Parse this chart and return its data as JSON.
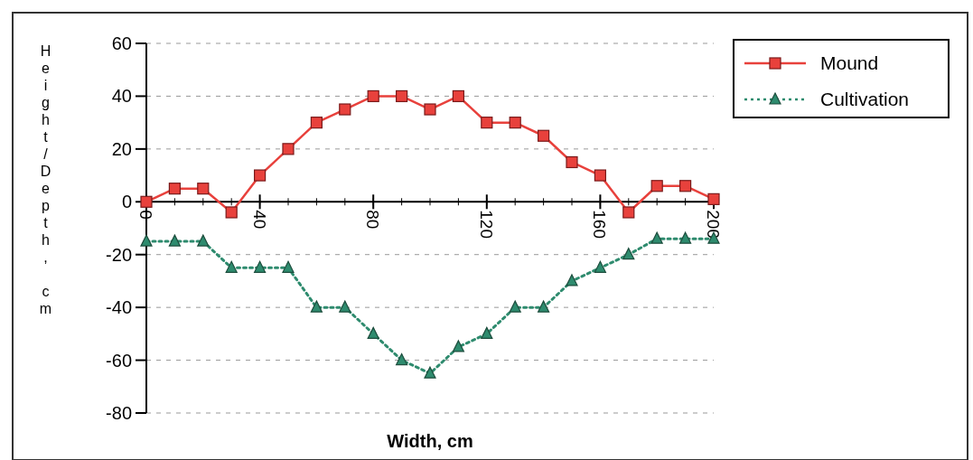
{
  "chart_data": {
    "type": "line",
    "xlabel": "Width, cm",
    "ylabel": "Height/Depth, cm",
    "x": [
      0,
      10,
      20,
      30,
      40,
      50,
      60,
      70,
      80,
      90,
      100,
      110,
      120,
      130,
      140,
      150,
      160,
      170,
      180,
      190,
      200
    ],
    "series": [
      {
        "name": "Mound",
        "color": "#e8413c",
        "marker": "square",
        "line_style": "solid",
        "values": [
          0,
          5,
          5,
          -4,
          10,
          20,
          30,
          35,
          40,
          40,
          35,
          40,
          30,
          30,
          25,
          15,
          10,
          -4,
          6,
          6,
          1
        ]
      },
      {
        "name": "Cultivation",
        "color": "#2e8b6e",
        "marker": "triangle",
        "line_style": "dotted",
        "values": [
          -15,
          -15,
          -15,
          -25,
          -25,
          -25,
          -40,
          -40,
          -50,
          -60,
          -65,
          -55,
          -50,
          -40,
          -40,
          -30,
          -25,
          -20,
          -14,
          -14,
          -14
        ]
      }
    ],
    "xlim": [
      0,
      200
    ],
    "xticks": [
      0,
      40,
      80,
      120,
      160,
      200
    ],
    "ylim": [
      -80,
      60
    ],
    "yticks": [
      -80,
      -60,
      -40,
      -20,
      0,
      20,
      40,
      60
    ],
    "grid": "y",
    "legend": "top right"
  }
}
